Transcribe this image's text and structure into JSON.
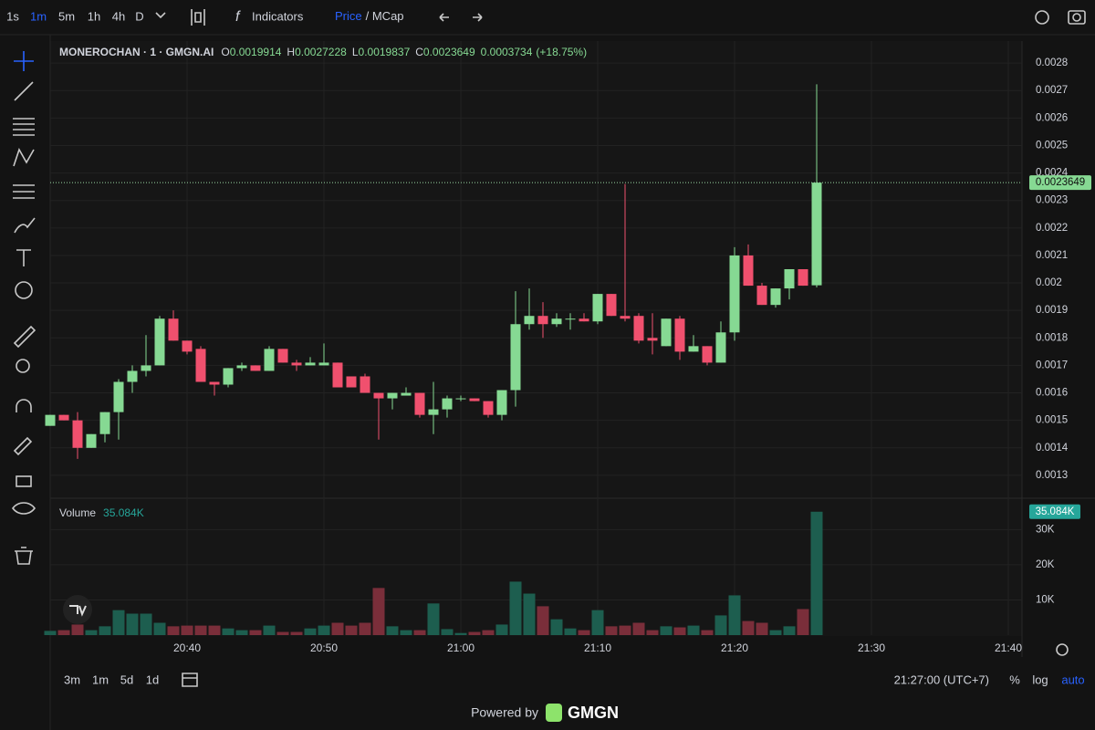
{
  "toolbar": {
    "intervals": [
      "1s",
      "1m",
      "5m",
      "1h",
      "4h",
      "D"
    ],
    "active_interval": "1m",
    "indicators": "Indicators",
    "price": "Price",
    "mcap": "/ MCap"
  },
  "chart_data": {
    "type": "candlestick",
    "title": "MONEROCHAN · 1 · GMGN.AI",
    "legend_prefixes": [
      "O",
      "H",
      "L",
      "C"
    ],
    "change": "0.0003734",
    "change_pct": "(+18.75%)",
    "up_color": "#86d993",
    "down_color": "#f0506e",
    "x": [
      "20:30",
      "20:31",
      "20:32",
      "20:33",
      "20:34",
      "20:35",
      "20:36",
      "20:37",
      "20:38",
      "20:39",
      "20:40",
      "20:41",
      "20:42",
      "20:43",
      "20:44",
      "20:45",
      "20:46",
      "20:47",
      "20:48",
      "20:49",
      "20:50",
      "20:51",
      "20:52",
      "20:53",
      "20:54",
      "20:55",
      "20:56",
      "20:57",
      "20:58",
      "20:59",
      "21:00",
      "21:01",
      "21:02",
      "21:03",
      "21:04",
      "21:05",
      "21:06",
      "21:07",
      "21:08",
      "21:09",
      "21:10",
      "21:11",
      "21:12",
      "21:13",
      "21:14",
      "21:15",
      "21:16",
      "21:17",
      "21:18",
      "21:19",
      "21:20",
      "21:21",
      "21:22",
      "21:23",
      "21:24",
      "21:25",
      "21:26"
    ],
    "open": [
      0.00148,
      0.00152,
      0.0015,
      0.0014,
      0.00145,
      0.00153,
      0.00164,
      0.00168,
      0.0017,
      0.00187,
      0.00179,
      0.00176,
      0.00164,
      0.00163,
      0.00169,
      0.0017,
      0.00168,
      0.00176,
      0.00171,
      0.0017,
      0.0017,
      0.00171,
      0.00166,
      0.00166,
      0.0016,
      0.00158,
      0.00159,
      0.0016,
      0.00152,
      0.00154,
      0.00158,
      0.00158,
      0.00157,
      0.00152,
      0.00161,
      0.00185,
      0.00188,
      0.00185,
      0.00187,
      0.00187,
      0.00186,
      0.00196,
      0.00188,
      0.00188,
      0.0018,
      0.00177,
      0.00187,
      0.00175,
      0.00177,
      0.00171,
      0.00182,
      0.0021,
      0.00199,
      0.00192,
      0.00198,
      0.00205,
      0.0019914
    ],
    "high": [
      0.00152,
      0.00152,
      0.00153,
      0.00145,
      0.00153,
      0.00165,
      0.0017,
      0.00181,
      0.00188,
      0.0019,
      0.00179,
      0.00177,
      0.00164,
      0.00169,
      0.00171,
      0.0017,
      0.00177,
      0.00176,
      0.00172,
      0.00173,
      0.00178,
      0.00171,
      0.00166,
      0.00167,
      0.0016,
      0.0016,
      0.00162,
      0.0016,
      0.00164,
      0.00159,
      0.00159,
      0.00158,
      0.00157,
      0.00161,
      0.00197,
      0.00198,
      0.00193,
      0.00189,
      0.00189,
      0.00189,
      0.00196,
      0.00196,
      0.00236,
      0.00189,
      0.00189,
      0.00187,
      0.00188,
      0.00181,
      0.00177,
      0.00186,
      0.00213,
      0.00214,
      0.002,
      0.00198,
      0.00205,
      0.00205,
      0.0027228
    ],
    "low": [
      0.00148,
      0.0015,
      0.00136,
      0.0014,
      0.00142,
      0.00143,
      0.0016,
      0.00166,
      0.0017,
      0.00179,
      0.00174,
      0.00164,
      0.00159,
      0.00162,
      0.00168,
      0.00168,
      0.00168,
      0.00171,
      0.00168,
      0.0017,
      0.0017,
      0.00162,
      0.00162,
      0.0016,
      0.00143,
      0.00154,
      0.00159,
      0.00151,
      0.00145,
      0.00151,
      0.00157,
      0.00157,
      0.00151,
      0.0015,
      0.00155,
      0.00183,
      0.0018,
      0.00184,
      0.00183,
      0.00186,
      0.00185,
      0.00188,
      0.00186,
      0.00178,
      0.00174,
      0.00177,
      0.00172,
      0.00175,
      0.0017,
      0.00171,
      0.00179,
      0.00199,
      0.00192,
      0.00191,
      0.00194,
      0.00199,
      0.0019837
    ],
    "close": [
      0.00152,
      0.0015,
      0.0014,
      0.00145,
      0.00153,
      0.00164,
      0.00168,
      0.0017,
      0.00187,
      0.00179,
      0.00175,
      0.00164,
      0.00163,
      0.00169,
      0.0017,
      0.00168,
      0.00176,
      0.00171,
      0.0017,
      0.00171,
      0.00171,
      0.00162,
      0.00162,
      0.0016,
      0.00158,
      0.0016,
      0.0016,
      0.00152,
      0.00154,
      0.00158,
      0.00158,
      0.00157,
      0.00152,
      0.00161,
      0.00185,
      0.00188,
      0.00185,
      0.00187,
      0.00187,
      0.00186,
      0.00196,
      0.00188,
      0.00187,
      0.00179,
      0.00179,
      0.00187,
      0.00175,
      0.00177,
      0.00171,
      0.00182,
      0.0021,
      0.00199,
      0.00192,
      0.00198,
      0.00205,
      0.00199,
      0.0023649
    ],
    "ylim": [
      0.00122,
      0.00288
    ],
    "yticks": [
      0.0013,
      0.0014,
      0.0015,
      0.0016,
      0.0017,
      0.0018,
      0.0019,
      0.002,
      0.0021,
      0.0022,
      0.0023,
      0.0024,
      0.0025,
      0.0026,
      0.0027,
      0.0028
    ],
    "xlim": [
      "20:30",
      "21:41"
    ],
    "xticks": [
      "20:40",
      "20:50",
      "21:00",
      "21:10",
      "21:20",
      "21:30",
      "21:40"
    ],
    "grid": true,
    "volume": {
      "name": "Volume",
      "up_color": "#1d5e4f",
      "down_color": "#7a2e3a",
      "label_color": "#26a69a",
      "values": [
        1200,
        1400,
        3000,
        1400,
        2500,
        7100,
        6100,
        6100,
        3500,
        2500,
        2700,
        2700,
        2700,
        1900,
        1400,
        1400,
        2700,
        900,
        900,
        1900,
        2700,
        3500,
        2700,
        3500,
        13400,
        2500,
        1400,
        1400,
        9000,
        1700,
        600,
        900,
        1400,
        3000,
        15200,
        11800,
        8200,
        4500,
        1900,
        1400,
        7100,
        2500,
        2700,
        3500,
        1400,
        2500,
        2200,
        2700,
        1400,
        5600,
        11300,
        4000,
        3500,
        1400,
        2500,
        7400,
        35084
      ],
      "last_label": "35.084K",
      "ylim": [
        0,
        38400
      ],
      "yticks": [
        {
          "value": 10000,
          "label": "10K"
        },
        {
          "value": 20000,
          "label": "20K"
        },
        {
          "value": 30000,
          "label": "30K"
        }
      ]
    }
  },
  "footer": {
    "ranges": [
      "3m",
      "1m",
      "5d",
      "1d"
    ],
    "clock": "21:27:00 (UTC+7)",
    "percent": "%",
    "log": "log",
    "auto": "auto",
    "powered": "Powered by",
    "brand": "GMGN"
  }
}
